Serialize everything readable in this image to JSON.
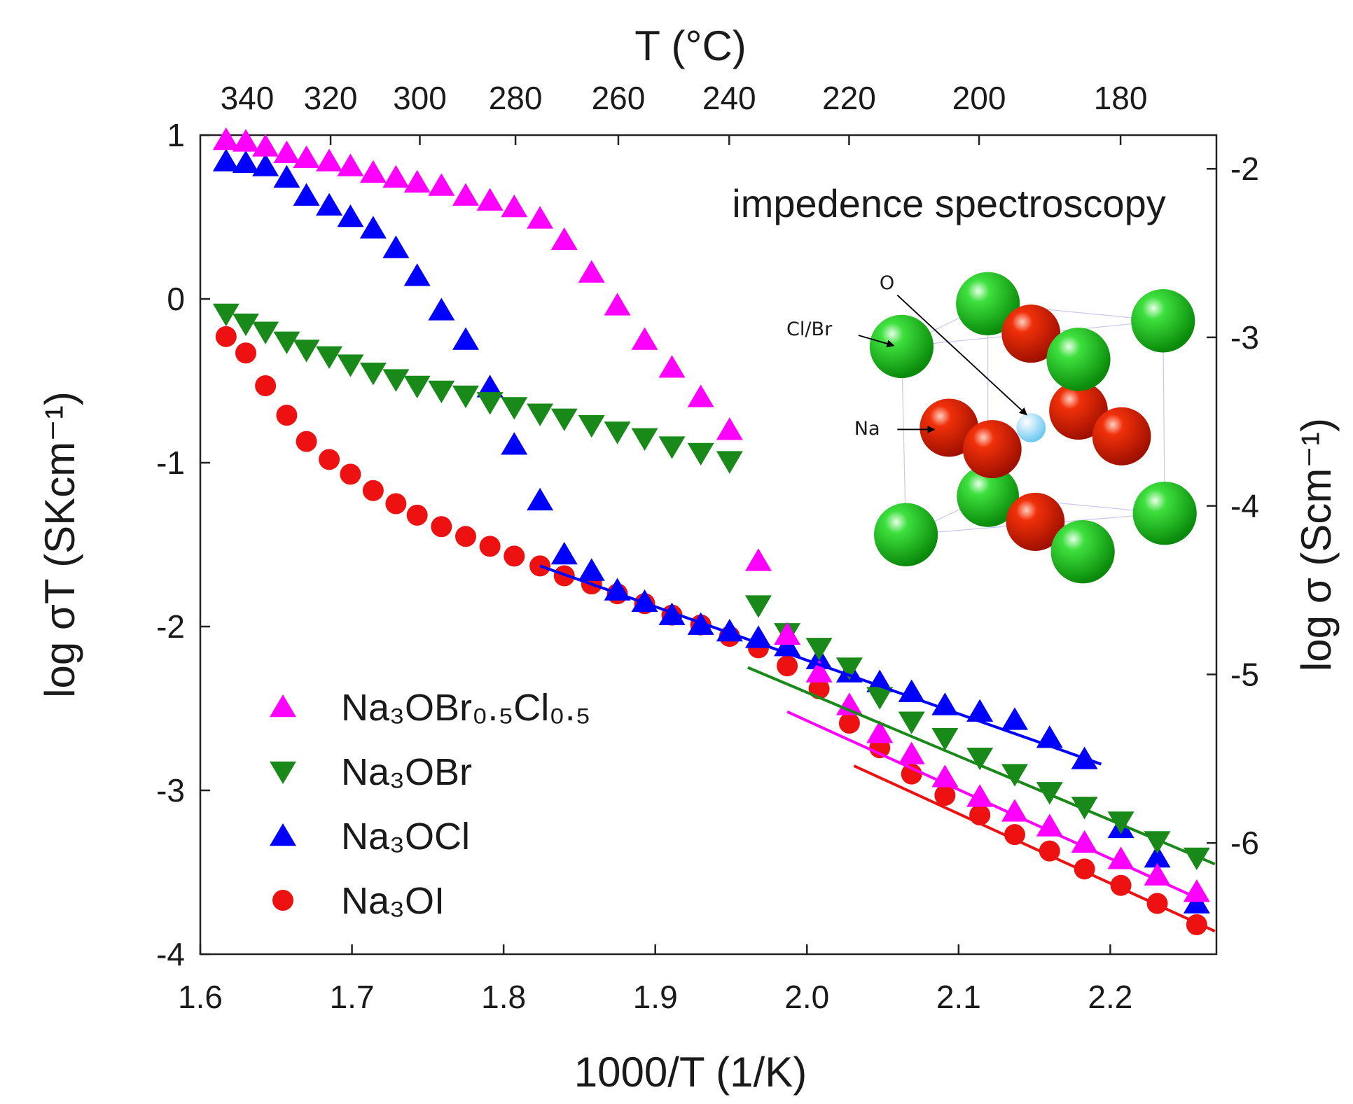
{
  "chart_data": {
    "type": "scatter",
    "top_title": "T (°C)",
    "x_label": "1000/T (1/K)",
    "y_label": "log σT (SKcm⁻¹)",
    "y2_label": "log σ (Scm⁻¹)",
    "annotation": "impedence spectroscopy",
    "inset_labels": [
      "O",
      "Cl/Br",
      "Na"
    ],
    "xlim": [
      1.6,
      2.27
    ],
    "ylim": [
      -4,
      1
    ],
    "y2lim": [
      -6.66,
      -1.8
    ],
    "xticks": [
      1.6,
      1.7,
      1.8,
      1.9,
      {
        "value": 2.0,
        "label": "2.0"
      },
      2.1,
      2.2
    ],
    "yticks": [
      -4,
      -3,
      -2,
      -1,
      0,
      1
    ],
    "y2ticks": [
      -6,
      -5,
      -4,
      -3,
      -2
    ],
    "top_ticks": [
      340,
      320,
      300,
      280,
      260,
      240,
      220,
      200,
      180
    ],
    "x": [
      1.617,
      1.63,
      1.643,
      1.657,
      1.67,
      1.685,
      1.699,
      1.714,
      1.729,
      1.743,
      1.759,
      1.775,
      1.791,
      1.807,
      1.824,
      1.84,
      1.858,
      1.875,
      1.893,
      1.911,
      1.93,
      1.949,
      1.968,
      1.987,
      2.008,
      2.028,
      2.048,
      2.069,
      2.091,
      2.114,
      2.137,
      2.16,
      2.183,
      2.207,
      2.231,
      2.257
    ],
    "series": [
      {
        "name": "Na₃OBr₀.₅Cl₀.₅",
        "color": "#ff00ff",
        "marker": "triangle-up",
        "values": [
          0.97,
          0.96,
          0.93,
          0.89,
          0.86,
          0.84,
          0.81,
          0.77,
          0.74,
          0.71,
          0.69,
          0.63,
          0.6,
          0.56,
          0.49,
          0.36,
          0.16,
          -0.04,
          -0.25,
          -0.42,
          -0.6,
          -0.8,
          -1.6,
          -2.05,
          -2.28,
          -2.48,
          -2.65,
          -2.78,
          -2.92,
          -3.04,
          -3.13,
          -3.22,
          -3.32,
          -3.42,
          -3.52,
          -3.62
        ],
        "fit_x": [
          1.987,
          2.258
        ],
        "fit_y": [
          -2.52,
          -3.66
        ]
      },
      {
        "name": "Na₃OBr",
        "color": "#198a19",
        "marker": "triangle-down",
        "values": [
          -0.09,
          -0.15,
          -0.2,
          -0.26,
          -0.31,
          -0.35,
          -0.4,
          -0.45,
          -0.49,
          -0.53,
          -0.56,
          -0.59,
          -0.63,
          -0.66,
          -0.7,
          -0.73,
          -0.77,
          -0.81,
          -0.85,
          -0.9,
          -0.94,
          -0.99,
          -1.87,
          -2.04,
          -2.13,
          -2.25,
          -2.43,
          -2.58,
          -2.68,
          -2.8,
          -2.9,
          -3.01,
          -3.1,
          -3.19,
          -3.31,
          -3.41
        ],
        "fit_x": [
          1.961,
          2.269
        ],
        "fit_y": [
          -2.25,
          -3.45
        ]
      },
      {
        "name": "Na₃OCl",
        "color": "#0000ff",
        "marker": "triangle-up",
        "values": [
          0.84,
          0.83,
          0.81,
          0.74,
          0.63,
          0.57,
          0.5,
          0.43,
          0.31,
          0.14,
          -0.07,
          -0.25,
          -0.54,
          -0.89,
          -1.23,
          -1.56,
          -1.66,
          -1.78,
          -1.85,
          -1.93,
          -1.99,
          -2.03,
          -2.07,
          -2.12,
          -2.2,
          -2.28,
          -2.34,
          -2.4,
          -2.48,
          -2.52,
          -2.57,
          -2.68,
          -2.81,
          -3.23,
          -3.41,
          -3.69
        ],
        "fit_x": [
          1.824,
          2.194
        ],
        "fit_y": [
          -1.63,
          -2.84
        ]
      },
      {
        "name": "Na₃OI",
        "color": "#ee1111",
        "marker": "circle",
        "values": [
          -0.23,
          -0.33,
          -0.53,
          -0.71,
          -0.87,
          -0.98,
          -1.07,
          -1.17,
          -1.25,
          -1.32,
          -1.39,
          -1.45,
          -1.51,
          -1.57,
          -1.63,
          -1.69,
          -1.74,
          -1.8,
          -1.86,
          -1.93,
          -1.99,
          -2.06,
          -2.13,
          -2.24,
          -2.38,
          -2.59,
          -2.74,
          -2.9,
          -3.03,
          -3.15,
          -3.27,
          -3.37,
          -3.48,
          -3.58,
          -3.69,
          -3.82
        ],
        "fit_x": [
          2.031,
          2.269
        ],
        "fit_y": [
          -2.85,
          -3.86
        ]
      }
    ]
  }
}
